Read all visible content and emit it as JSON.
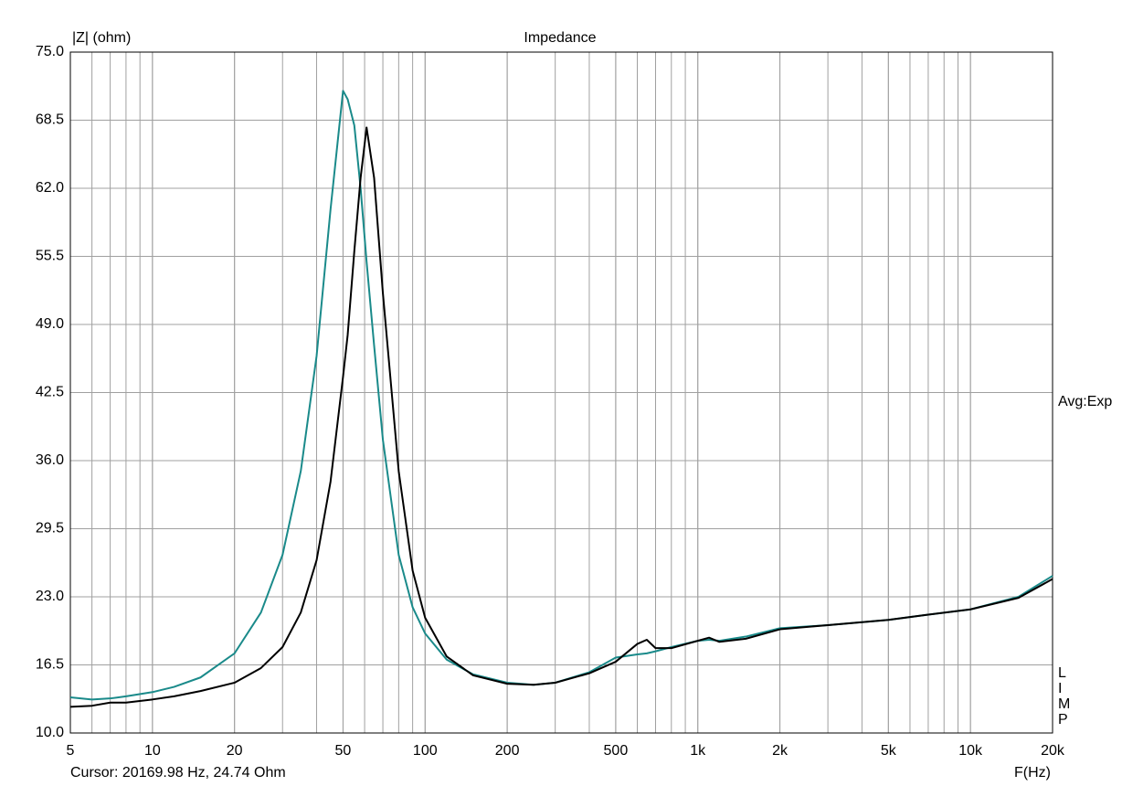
{
  "chart_data": {
    "type": "line",
    "title": "Impedance",
    "y_label": "|Z| (ohm)",
    "x_label": "F(Hz)",
    "status": "Cursor: 20169.98 Hz, 24.74 Ohm",
    "avg_label": "Avg:Exp",
    "side_letters": [
      "L",
      "I",
      "M",
      "P"
    ],
    "x_scale": "log",
    "grid": true,
    "minor_grid": true,
    "xlim": [
      5,
      20000
    ],
    "xticks": [
      5,
      10,
      20,
      50,
      100,
      200,
      500,
      {
        "value": 1000,
        "label": "1k"
      },
      {
        "value": 2000,
        "label": "2k"
      },
      {
        "value": 5000,
        "label": "5k"
      },
      {
        "value": 10000,
        "label": "10k"
      },
      {
        "value": 20000,
        "label": "20k"
      }
    ],
    "ylim": [
      10,
      75
    ],
    "yticks": [
      {
        "value": 10,
        "label": "10.0"
      },
      16.5,
      {
        "value": 23,
        "label": "23.0"
      },
      29.5,
      {
        "value": 36,
        "label": "36.0"
      },
      42.5,
      {
        "value": 49,
        "label": "49.0"
      },
      55.5,
      {
        "value": 62,
        "label": "62.0"
      },
      68.5,
      {
        "value": 75,
        "label": "75.0"
      }
    ],
    "x": [
      5,
      6,
      7,
      8,
      10,
      12,
      15,
      20,
      25,
      30,
      35,
      40,
      45,
      50,
      52,
      55,
      58,
      61,
      65,
      70,
      80,
      90,
      100,
      120,
      150,
      200,
      250,
      300,
      400,
      500,
      600,
      650,
      700,
      800,
      1000,
      1100,
      1200,
      1500,
      2000,
      3000,
      5000,
      7000,
      10000,
      15000,
      20000
    ],
    "series": [
      {
        "color": "#1a8a8a",
        "values": [
          13.4,
          13.2,
          13.3,
          13.5,
          13.9,
          14.4,
          15.3,
          17.6,
          21.5,
          27,
          35,
          46,
          60,
          71.3,
          70.5,
          68,
          62,
          55,
          47,
          38,
          27,
          22,
          19.5,
          17,
          15.6,
          14.8,
          14.6,
          14.8,
          15.8,
          17.2,
          17.5,
          17.6,
          17.8,
          18.2,
          18.8,
          18.9,
          18.8,
          19.2,
          20,
          20.3,
          20.8,
          21.3,
          21.8,
          23,
          25
        ]
      },
      {
        "color": "#000000",
        "values": [
          12.5,
          12.6,
          12.9,
          12.9,
          13.2,
          13.5,
          14,
          14.8,
          16.2,
          18.2,
          21.5,
          26.5,
          34,
          44,
          48,
          56,
          63,
          67.8,
          63,
          52,
          35,
          25.5,
          21,
          17.3,
          15.5,
          14.7,
          14.6,
          14.8,
          15.7,
          16.8,
          18.5,
          18.9,
          18.1,
          18.1,
          18.8,
          19.1,
          18.7,
          19,
          19.9,
          20.3,
          20.8,
          21.3,
          21.8,
          22.9,
          24.7
        ]
      }
    ]
  }
}
